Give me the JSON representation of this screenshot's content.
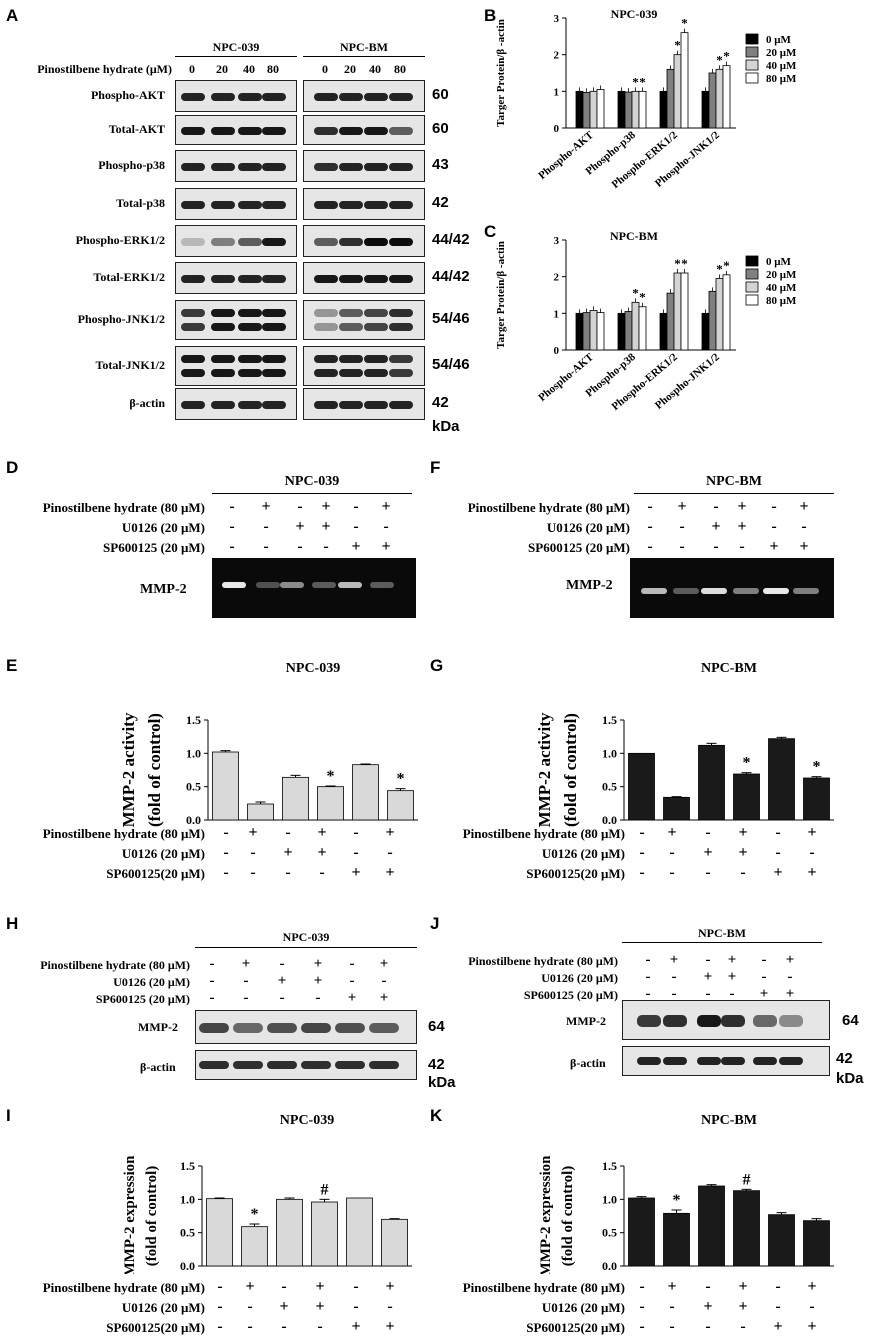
{
  "panel_letters": [
    "A",
    "B",
    "C",
    "D",
    "E",
    "F",
    "G",
    "H",
    "I",
    "J",
    "K"
  ],
  "panelA": {
    "cell_lines": [
      "NPC-039",
      "NPC-BM"
    ],
    "treatment_label": "Pinostilbene hydrate (μM)",
    "doses": [
      "0",
      "20",
      "40",
      "80"
    ],
    "rows": [
      {
        "label": "Phospho-AKT",
        "kda": "60"
      },
      {
        "label": "Total-AKT",
        "kda": "60"
      },
      {
        "label": "Phospho-p38",
        "kda": "43"
      },
      {
        "label": "Total-p38",
        "kda": "42"
      },
      {
        "label": "Phospho-ERK1/2",
        "kda": "44/42"
      },
      {
        "label": "Total-ERK1/2",
        "kda": "44/42"
      },
      {
        "label": "Phospho-JNK1/2",
        "kda": "54/46"
      },
      {
        "label": "Total-JNK1/2",
        "kda": "54/46"
      },
      {
        "label": "β-actin",
        "kda": "42"
      }
    ],
    "unit": "kDa"
  },
  "treatments": {
    "pino_80": "Pinostilbene hydrate (80 μM)",
    "u0126": "U0126 (20 μM)",
    "sp_spaced": "SP600125 (20 μM)",
    "sp_compact": "SP600125(20 μM)",
    "pino_signs": [
      "-",
      "+",
      "-",
      "+",
      "-",
      "+"
    ],
    "u0126_signs": [
      "-",
      "-",
      "+",
      "+",
      "-",
      "-"
    ],
    "sp_signs": [
      "-",
      "-",
      "-",
      "-",
      "+",
      "+"
    ]
  },
  "gel_labels": {
    "mmp2": "MMP-2",
    "actin": "β-actin",
    "kda_64": "64",
    "kda_42": "42",
    "unit": "kDa",
    "npc039": "NPC-039",
    "npcbm": "NPC-BM"
  },
  "chart_data": [
    {
      "id": "B",
      "type": "bar",
      "title": "NPC-039",
      "ylabel": "Targer Protein/β -actin",
      "categories": [
        "Phospho-AKT",
        "Phospho-p38",
        "Phospho-ERK1/2",
        "Phospho-JNK1/2"
      ],
      "ylim": [
        0,
        3
      ],
      "yticks": [
        "0",
        "1",
        "2",
        "3"
      ],
      "series": [
        {
          "name": "0 μM",
          "values": [
            1.0,
            1.0,
            1.0,
            1.0
          ],
          "color": "#000000"
        },
        {
          "name": "20 μM",
          "values": [
            0.97,
            0.98,
            1.6,
            1.5
          ],
          "color": "#808080"
        },
        {
          "name": "40 μM",
          "values": [
            1.0,
            1.0,
            2.0,
            1.6
          ],
          "color": "#d4d4d4"
        },
        {
          "name": "80 μM",
          "values": [
            1.05,
            1.0,
            2.6,
            1.7
          ],
          "color": "#ffffff"
        }
      ],
      "significance": [
        [
          0,
          0,
          0,
          0
        ],
        [
          0,
          0,
          0,
          0
        ],
        [
          0,
          1,
          1,
          1
        ],
        [
          0,
          1,
          1,
          1
        ]
      ],
      "legend": "right"
    },
    {
      "id": "C",
      "type": "bar",
      "title": "NPC-BM",
      "ylabel": "Targer Protein/β -actin",
      "categories": [
        "Phospho-AKT",
        "Phospho-p38",
        "Phospho-ERK1/2",
        "Phospho-JNK1/2"
      ],
      "ylim": [
        0,
        3
      ],
      "yticks": [
        "0",
        "1",
        "2",
        "3"
      ],
      "series": [
        {
          "name": "0 μM",
          "values": [
            1.0,
            1.0,
            1.0,
            1.0
          ],
          "color": "#000000"
        },
        {
          "name": "20 μM",
          "values": [
            1.02,
            1.05,
            1.55,
            1.6
          ],
          "color": "#808080"
        },
        {
          "name": "40 μM",
          "values": [
            1.08,
            1.3,
            2.1,
            1.95
          ],
          "color": "#d4d4d4"
        },
        {
          "name": "80 μM",
          "values": [
            1.02,
            1.18,
            2.1,
            2.05
          ],
          "color": "#ffffff"
        }
      ],
      "significance": [
        [
          0,
          0,
          0,
          0
        ],
        [
          0,
          0,
          0,
          0
        ],
        [
          0,
          1,
          1,
          1
        ],
        [
          0,
          1,
          1,
          1
        ]
      ],
      "legend": "right"
    },
    {
      "id": "E",
      "type": "bar",
      "title": "NPC-039",
      "ylabel": [
        "MMP-2 activity",
        "(fold of control)"
      ],
      "ylim": [
        0,
        1.5
      ],
      "yticks": [
        "0.0",
        "0.5",
        "1.0",
        "1.5"
      ],
      "values": [
        1.02,
        0.24,
        0.64,
        0.5,
        0.83,
        0.44
      ],
      "errors": [
        0.02,
        0.03,
        0.03,
        0.01,
        0.01,
        0.03
      ],
      "marks": [
        "",
        "",
        "",
        "*",
        "",
        "*"
      ],
      "color": "#d9d9d9"
    },
    {
      "id": "G",
      "type": "bar",
      "title": "NPC-BM",
      "ylabel": [
        "MMP-2 activity",
        "(fold of control)"
      ],
      "ylim": [
        0,
        1.5
      ],
      "yticks": [
        "0.0",
        "0.5",
        "1.0",
        "1.5"
      ],
      "values": [
        1.0,
        0.34,
        1.12,
        0.69,
        1.22,
        0.63
      ],
      "errors": [
        0,
        0.01,
        0.03,
        0.02,
        0.02,
        0.02
      ],
      "marks": [
        "",
        "",
        "",
        "*",
        "",
        "*"
      ],
      "color": "#1a1a1a"
    },
    {
      "id": "I",
      "type": "bar",
      "title": "NPC-039",
      "ylabel": [
        "MMP-2 expression",
        "(fold of control)"
      ],
      "ylim": [
        0,
        1.5
      ],
      "yticks": [
        "0.0",
        "0.5",
        "1.0",
        "1.5"
      ],
      "values": [
        1.01,
        0.59,
        1.0,
        0.96,
        1.02,
        0.7
      ],
      "errors": [
        0.01,
        0.04,
        0.02,
        0.04,
        0.0,
        0.01
      ],
      "marks": [
        "",
        "*",
        "",
        "#",
        "",
        ""
      ],
      "color": "#d9d9d9"
    },
    {
      "id": "K",
      "type": "bar",
      "title": "NPC-BM",
      "ylabel": [
        "MMP-2 expression",
        "(fold of control)"
      ],
      "ylim": [
        0,
        1.5
      ],
      "yticks": [
        "0.0",
        "0.5",
        "1.0",
        "1.5"
      ],
      "values": [
        1.02,
        0.79,
        1.2,
        1.13,
        0.77,
        0.68
      ],
      "errors": [
        0.02,
        0.05,
        0.02,
        0.02,
        0.03,
        0.03
      ],
      "marks": [
        "",
        "*",
        "",
        "#",
        "",
        ""
      ],
      "color": "#1a1a1a"
    }
  ]
}
